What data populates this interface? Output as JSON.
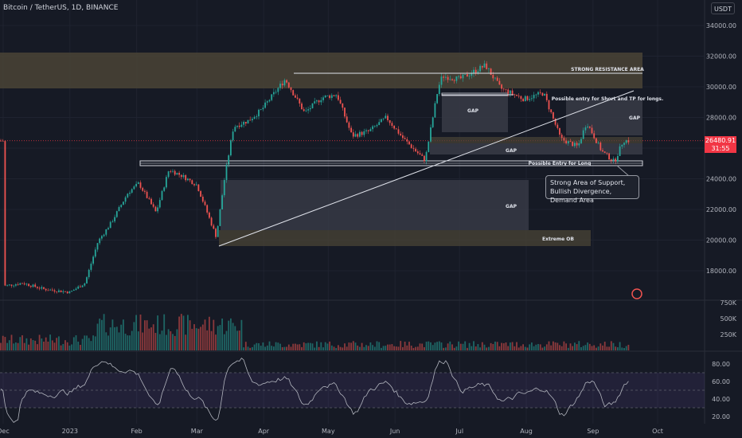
{
  "header": {
    "title": "Bitcoin / TetherUS, 1D, BINANCE",
    "currency_badge": "USDT"
  },
  "price_tag": {
    "price": "26480.91",
    "countdown": "31:55"
  },
  "colors": {
    "background": "#161a25",
    "up": "#26a69a",
    "down": "#ef5350",
    "price_line": "#f23645",
    "rsi_band": "#7e57c2"
  },
  "chart_data": [
    {
      "type": "candlestick",
      "title": "",
      "xlabel": "",
      "ylabel": "",
      "x_ticks": [
        "Dec",
        "2023",
        "Feb",
        "Mar",
        "Apr",
        "May",
        "Jun",
        "Jul",
        "Aug",
        "Sep",
        "Oct"
      ],
      "y_ticks": [
        18000,
        20000,
        22000,
        24000,
        26000,
        28000,
        30000,
        32000,
        34000
      ],
      "ylim": [
        16500,
        35000
      ],
      "last_price": 26480.91,
      "price_path": [
        {
          "date": "2022-12-01",
          "close": 17000
        },
        {
          "date": "2022-12-10",
          "close": 17200
        },
        {
          "date": "2022-12-20",
          "close": 16800
        },
        {
          "date": "2023-01-01",
          "close": 16600
        },
        {
          "date": "2023-01-08",
          "close": 17200
        },
        {
          "date": "2023-01-14",
          "close": 19900
        },
        {
          "date": "2023-01-20",
          "close": 21100
        },
        {
          "date": "2023-01-28",
          "close": 23100
        },
        {
          "date": "2023-02-02",
          "close": 23700
        },
        {
          "date": "2023-02-10",
          "close": 21800
        },
        {
          "date": "2023-02-16",
          "close": 24600
        },
        {
          "date": "2023-02-22",
          "close": 24200
        },
        {
          "date": "2023-03-01",
          "close": 23600
        },
        {
          "date": "2023-03-10",
          "close": 20200
        },
        {
          "date": "2023-03-14",
          "close": 24200
        },
        {
          "date": "2023-03-18",
          "close": 27400
        },
        {
          "date": "2023-03-25",
          "close": 27800
        },
        {
          "date": "2023-03-31",
          "close": 28500
        },
        {
          "date": "2023-04-11",
          "close": 30500
        },
        {
          "date": "2023-04-20",
          "close": 28300
        },
        {
          "date": "2023-04-28",
          "close": 29300
        },
        {
          "date": "2023-05-05",
          "close": 29500
        },
        {
          "date": "2023-05-12",
          "close": 26800
        },
        {
          "date": "2023-05-20",
          "close": 27100
        },
        {
          "date": "2023-05-28",
          "close": 28000
        },
        {
          "date": "2023-06-05",
          "close": 26600
        },
        {
          "date": "2023-06-15",
          "close": 25200
        },
        {
          "date": "2023-06-21",
          "close": 29900
        },
        {
          "date": "2023-06-23",
          "close": 30700
        },
        {
          "date": "2023-07-01",
          "close": 30500
        },
        {
          "date": "2023-07-13",
          "close": 31400
        },
        {
          "date": "2023-07-20",
          "close": 29900
        },
        {
          "date": "2023-07-31",
          "close": 29200
        },
        {
          "date": "2023-08-09",
          "close": 29600
        },
        {
          "date": "2023-08-17",
          "close": 26600
        },
        {
          "date": "2023-08-25",
          "close": 26100
        },
        {
          "date": "2023-08-29",
          "close": 27700
        },
        {
          "date": "2023-09-05",
          "close": 25800
        },
        {
          "date": "2023-09-11",
          "close": 25100
        },
        {
          "date": "2023-09-15",
          "close": 26500
        },
        {
          "date": "2023-09-18",
          "close": 26480
        }
      ],
      "annotations": [
        {
          "label": "STRONG RESISTANCE AREA"
        },
        {
          "label": "Possible entry for Short and TP for longs."
        },
        {
          "label": "GAP"
        },
        {
          "label": "GAP"
        },
        {
          "label": "GAP"
        },
        {
          "label": "GAP"
        },
        {
          "label": "Possible Entry for Long"
        },
        {
          "label": "Extreme OB"
        },
        {
          "label": "Strong Area of Support, Bullish Divergence, Demand Area"
        }
      ]
    },
    {
      "type": "bar",
      "title": "",
      "ylabel": "",
      "y_ticks": [
        "250K",
        "500K",
        "750K"
      ]
    },
    {
      "type": "line",
      "title": "",
      "ylabel": "",
      "ylim": [
        10,
        90
      ],
      "y_ticks": [
        "20.00",
        "40.00",
        "60.00",
        "80.00"
      ],
      "band": [
        30,
        70
      ],
      "midline": 50
    }
  ]
}
